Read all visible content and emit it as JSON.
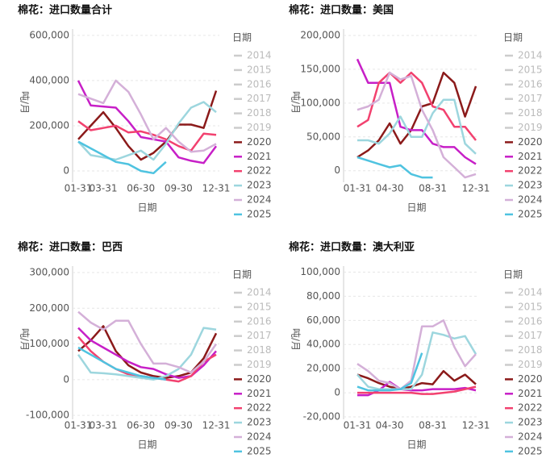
{
  "chart_data": [
    {
      "type": "line",
      "title": "棉花：进口数量合计",
      "y_label": "吨/月",
      "x_label": "日期",
      "legend_title": "日期",
      "legend_inactive": [
        "2014",
        "2015",
        "2016",
        "2017",
        "2018",
        "2019"
      ],
      "categories": [
        "01-31",
        null,
        "03-31",
        null,
        null,
        "06-30",
        null,
        null,
        "09-30",
        null,
        null,
        "12-31"
      ],
      "ylim": [
        -50000,
        628000
      ],
      "yticks": [
        0,
        {
          "value": 200000,
          "label": "200,000"
        },
        {
          "value": 400000,
          "label": "400,000"
        },
        {
          "value": 600000,
          "label": "600,000"
        }
      ],
      "grid": true,
      "series": [
        {
          "name": "2020",
          "color": "#8b1a1a",
          "values": [
            140000,
            200000,
            260000,
            190000,
            110000,
            50000,
            80000,
            130000,
            205000,
            205000,
            190000,
            355000
          ]
        },
        {
          "name": "2021",
          "color": "#c71fc7",
          "values": [
            400000,
            290000,
            285000,
            280000,
            220000,
            150000,
            140000,
            130000,
            60000,
            45000,
            35000,
            110000
          ]
        },
        {
          "name": "2022",
          "color": "#f2416f",
          "values": [
            220000,
            180000,
            190000,
            200000,
            170000,
            175000,
            160000,
            140000,
            110000,
            90000,
            165000,
            160000
          ]
        },
        {
          "name": "2023",
          "color": "#9dd6de",
          "values": [
            130000,
            70000,
            60000,
            50000,
            70000,
            90000,
            50000,
            120000,
            210000,
            280000,
            305000,
            260000
          ]
        },
        {
          "name": "2024",
          "color": "#d4b0d8",
          "values": [
            340000,
            320000,
            300000,
            400000,
            350000,
            250000,
            140000,
            190000,
            130000,
            85000,
            90000,
            120000
          ]
        },
        {
          "name": "2025",
          "color": "#4fc3e0",
          "values": [
            130000,
            100000,
            70000,
            40000,
            30000,
            0,
            -10000,
            40000,
            null,
            null,
            null,
            null
          ]
        }
      ]
    },
    {
      "type": "line",
      "title": "棉花：进口数量：美国",
      "y_label": "吨/月",
      "x_label": "日期",
      "legend_title": "日期",
      "legend_inactive": [
        "2014",
        "2015",
        "2016",
        "2017",
        "2018",
        "2019"
      ],
      "categories": [
        "01-31",
        null,
        null,
        "04-30",
        null,
        null,
        null,
        "08-31",
        null,
        null,
        null,
        "12-31"
      ],
      "ylim": [
        -17000,
        209500
      ],
      "yticks": [
        0,
        {
          "value": 50000,
          "label": "50,000"
        },
        {
          "value": 100000,
          "label": "100,000"
        },
        {
          "value": 150000,
          "label": "150,000"
        },
        {
          "value": 200000,
          "label": "200,000"
        }
      ],
      "grid": true,
      "series": [
        {
          "name": "2020",
          "color": "#8b1a1a",
          "values": [
            20000,
            30000,
            45000,
            70000,
            40000,
            60000,
            95000,
            100000,
            145000,
            130000,
            80000,
            125000
          ]
        },
        {
          "name": "2021",
          "color": "#c71fc7",
          "values": [
            165000,
            130000,
            130000,
            130000,
            65000,
            60000,
            60000,
            40000,
            35000,
            35000,
            20000,
            10000
          ]
        },
        {
          "name": "2022",
          "color": "#f2416f",
          "values": [
            65000,
            75000,
            130000,
            145000,
            130000,
            145000,
            130000,
            95000,
            90000,
            65000,
            65000,
            45000
          ]
        },
        {
          "name": "2023",
          "color": "#9dd6de",
          "values": [
            45000,
            45000,
            40000,
            55000,
            80000,
            50000,
            50000,
            85000,
            105000,
            105000,
            40000,
            25000
          ]
        },
        {
          "name": "2024",
          "color": "#d4b0d8",
          "values": [
            90000,
            95000,
            105000,
            145000,
            135000,
            140000,
            90000,
            60000,
            20000,
            5000,
            -10000,
            -5000
          ]
        },
        {
          "name": "2025",
          "color": "#4fc3e0",
          "values": [
            20000,
            15000,
            10000,
            5000,
            8000,
            -5000,
            -10000,
            -10000,
            null,
            null,
            null,
            null
          ]
        }
      ]
    },
    {
      "type": "line",
      "title": "棉花：进口数量：巴西",
      "y_label": "吨/月",
      "x_label": "日期",
      "legend_title": "日期",
      "legend_inactive": [
        "2014",
        "2015",
        "2016",
        "2017",
        "2018",
        "2019"
      ],
      "categories": [
        "01-31",
        null,
        "03-31",
        null,
        null,
        "06-30",
        null,
        null,
        "09-30",
        null,
        null,
        "12-31"
      ],
      "ylim": [
        -111000,
        318000
      ],
      "yticks": [
        {
          "value": -100000,
          "label": "-100,000"
        },
        0,
        {
          "value": 100000,
          "label": "100,000"
        },
        {
          "value": 200000,
          "label": "200,000"
        },
        {
          "value": 300000,
          "label": "300,000"
        }
      ],
      "grid": true,
      "series": [
        {
          "name": "2020",
          "color": "#8b1a1a",
          "values": [
            80000,
            110000,
            150000,
            80000,
            40000,
            20000,
            10000,
            5000,
            10000,
            20000,
            60000,
            130000
          ]
        },
        {
          "name": "2021",
          "color": "#c71fc7",
          "values": [
            145000,
            110000,
            90000,
            70000,
            50000,
            35000,
            30000,
            15000,
            5000,
            10000,
            40000,
            80000
          ]
        },
        {
          "name": "2022",
          "color": "#f2416f",
          "values": [
            120000,
            80000,
            50000,
            30000,
            15000,
            10000,
            5000,
            0,
            -5000,
            10000,
            50000,
            70000
          ]
        },
        {
          "name": "2023",
          "color": "#9dd6de",
          "values": [
            70000,
            20000,
            18000,
            15000,
            10000,
            5000,
            0,
            10000,
            30000,
            70000,
            145000,
            140000
          ]
        },
        {
          "name": "2024",
          "color": "#d4b0d8",
          "values": [
            190000,
            160000,
            140000,
            165000,
            165000,
            100000,
            45000,
            45000,
            35000,
            20000,
            50000,
            100000
          ]
        },
        {
          "name": "2025",
          "color": "#4fc3e0",
          "values": [
            90000,
            70000,
            50000,
            30000,
            20000,
            10000,
            5000,
            0,
            null,
            null,
            null,
            null
          ]
        }
      ]
    },
    {
      "type": "line",
      "title": "棉花：进口数量：澳大利亚",
      "y_label": "吨/月",
      "x_label": "日期",
      "legend_title": "日期",
      "legend_inactive": [
        "2014",
        "2015",
        "2016",
        "2017",
        "2018",
        "2019"
      ],
      "categories": [
        "01-31",
        null,
        null,
        "04-30",
        null,
        null,
        null,
        "08-31",
        null,
        null,
        null,
        "12-31"
      ],
      "ylim": [
        -22000,
        105000
      ],
      "yticks": [
        {
          "value": -20000,
          "label": "-20,000"
        },
        0,
        {
          "value": 20000,
          "label": "20,000"
        },
        {
          "value": 40000,
          "label": "40,000"
        },
        {
          "value": 60000,
          "label": "60,000"
        },
        {
          "value": 80000,
          "label": "80,000"
        },
        {
          "value": 100000,
          "label": "100,000"
        }
      ],
      "grid": true,
      "series": [
        {
          "name": "2020",
          "color": "#8b1a1a",
          "values": [
            15000,
            12000,
            8000,
            5000,
            3000,
            5000,
            8000,
            7000,
            18000,
            10000,
            15000,
            7000
          ]
        },
        {
          "name": "2021",
          "color": "#c71fc7",
          "values": [
            -2000,
            -2000,
            2000,
            9000,
            3000,
            2000,
            2000,
            3000,
            3000,
            3000,
            4000,
            2000
          ]
        },
        {
          "name": "2022",
          "color": "#f2416f",
          "values": [
            0,
            0,
            0,
            0,
            0,
            0,
            -1000,
            -1000,
            0,
            1000,
            3000,
            5000
          ]
        },
        {
          "name": "2023",
          "color": "#9dd6de",
          "values": [
            15000,
            5000,
            3000,
            3000,
            3000,
            3000,
            15000,
            50000,
            48000,
            45000,
            47000,
            32000
          ]
        },
        {
          "name": "2024",
          "color": "#d4b0d8",
          "values": [
            24000,
            18000,
            10000,
            8000,
            3000,
            10000,
            55000,
            55000,
            60000,
            38000,
            22000,
            32000
          ]
        },
        {
          "name": "2025",
          "color": "#4fc3e0",
          "values": [
            5000,
            2000,
            2000,
            2000,
            3000,
            8000,
            33000,
            null,
            null,
            null,
            null,
            null
          ]
        }
      ]
    }
  ]
}
